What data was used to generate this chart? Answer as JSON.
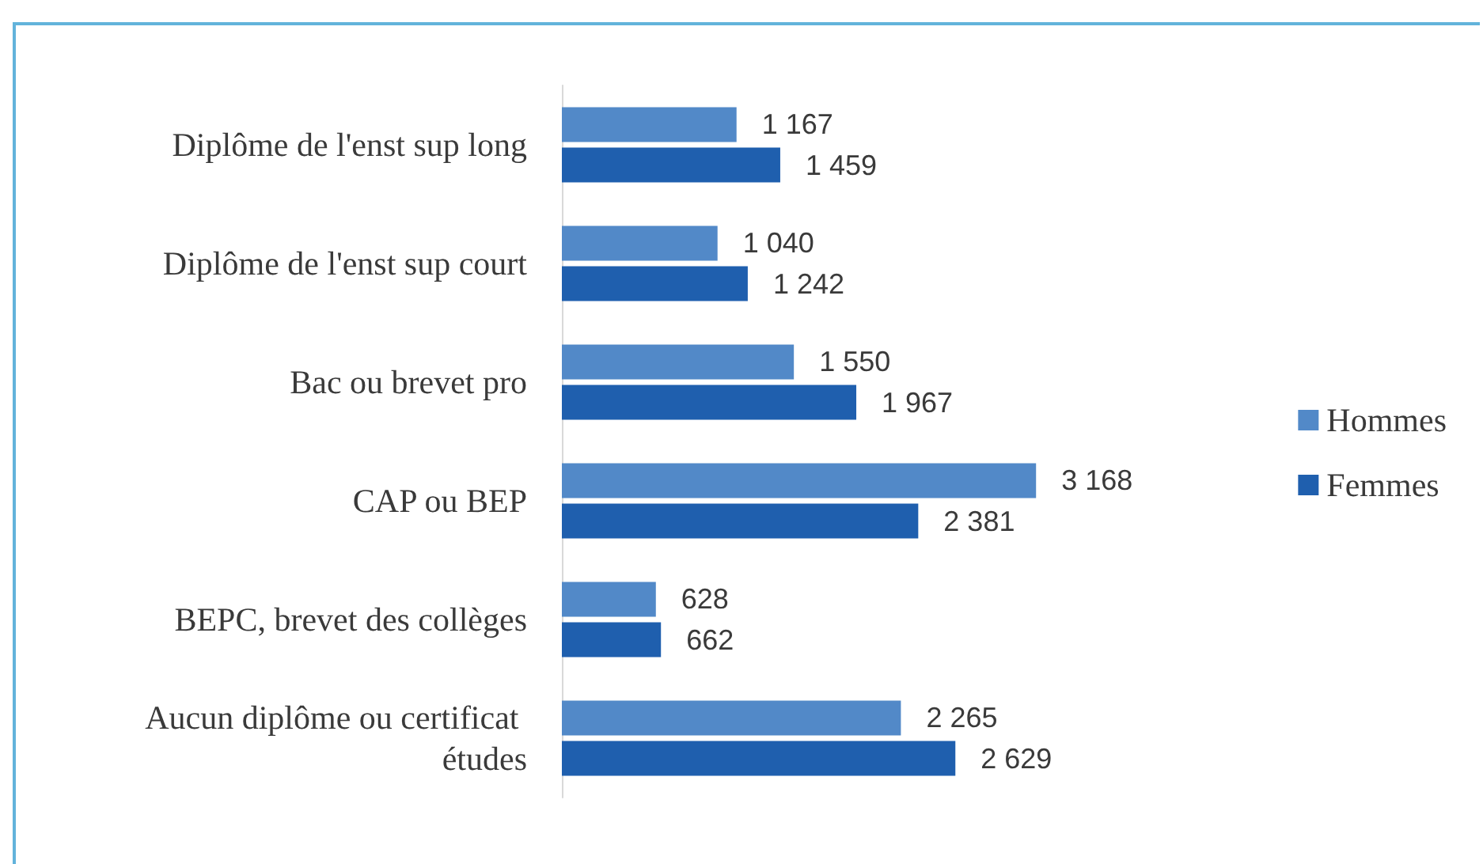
{
  "chart_data": {
    "type": "bar",
    "orientation": "horizontal",
    "categories": [
      "Diplôme de l'enst sup long",
      "Diplôme de l'enst sup court",
      "Bac ou brevet pro",
      "CAP ou BEP",
      "BEPC, brevet des collèges",
      "Aucun diplôme ou certificat études"
    ],
    "series": [
      {
        "name": "Hommes",
        "color": "#5289c8",
        "values": [
          1167,
          1040,
          1550,
          3168,
          628,
          2265
        ]
      },
      {
        "name": "Femmes",
        "color": "#1f5fae",
        "values": [
          1459,
          1242,
          1967,
          2381,
          662,
          2629
        ]
      }
    ],
    "data_labels": true,
    "legend": "right",
    "tick_labels": "y"
  }
}
